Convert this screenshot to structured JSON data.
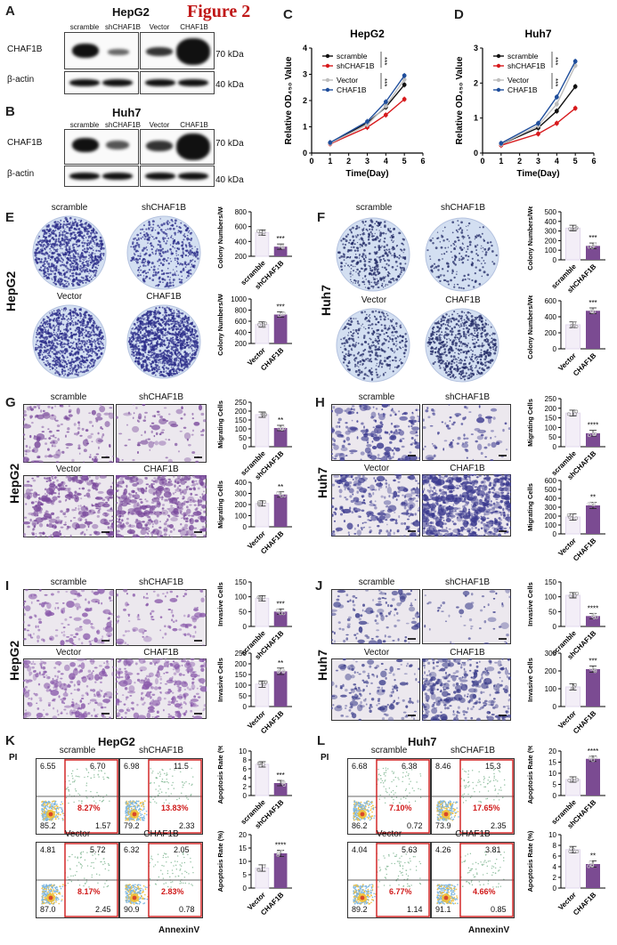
{
  "figure_title": "Figure 2",
  "panels": {
    "A": {
      "letter": "A",
      "cell_line": "HepG2",
      "lanes": [
        "scramble",
        "shCHAF1B",
        "Vector",
        "CHAF1B"
      ],
      "rows": [
        "CHAF1B",
        "β-actin"
      ],
      "markers": [
        "70 kDa",
        "40 kDa"
      ]
    },
    "B": {
      "letter": "B",
      "cell_line": "Huh7",
      "lanes": [
        "scramble",
        "shCHAF1B",
        "Vector",
        "CHAF1B"
      ],
      "rows": [
        "CHAF1B",
        "β-actin"
      ],
      "markers": [
        "70 kDa",
        "40 kDa"
      ]
    },
    "C": {
      "letter": "C"
    },
    "D": {
      "letter": "D"
    },
    "E": {
      "letter": "E",
      "cell_line": "HepG2",
      "conds": [
        "scramble",
        "shCHAF1B",
        "Vector",
        "CHAF1B"
      ]
    },
    "F": {
      "letter": "F",
      "cell_line": "Huh7",
      "conds": [
        "scramble",
        "shCHAF1B",
        "Vector",
        "CHAF1B"
      ]
    },
    "G": {
      "letter": "G",
      "cell_line": "HepG2",
      "conds": [
        "scramble",
        "shCHAF1B",
        "Vector",
        "CHAF1B"
      ]
    },
    "H": {
      "letter": "H",
      "cell_line": "Huh7",
      "conds": [
        "scramble",
        "shCHAF1B",
        "Vector",
        "CHAF1B"
      ]
    },
    "I": {
      "letter": "I",
      "cell_line": "HepG2",
      "conds": [
        "scramble",
        "shCHAF1B",
        "Vector",
        "CHAF1B"
      ]
    },
    "J": {
      "letter": "J",
      "cell_line": "Huh7",
      "conds": [
        "scramble",
        "shCHAF1B",
        "Vector",
        "CHAF1B"
      ]
    },
    "K": {
      "letter": "K",
      "cell_line": "HepG2",
      "x_axis": "AnnexinV",
      "y_axis": "PI",
      "plots": [
        {
          "cond": "scramble",
          "ul": "6.55",
          "ur": "6.70",
          "ll": "85.2",
          "lr": "1.57",
          "red": "8.27%"
        },
        {
          "cond": "shCHAF1B",
          "ul": "6.98",
          "ur": "11.5",
          "ll": "79.2",
          "lr": "2.33",
          "red": "13.83%"
        },
        {
          "cond": "Vector",
          "ul": "4.81",
          "ur": "5.72",
          "ll": "87.0",
          "lr": "2.45",
          "red": "8.17%"
        },
        {
          "cond": "CHAF1B",
          "ul": "6.32",
          "ur": "2.05",
          "ll": "90.9",
          "lr": "0.78",
          "red": "2.83%"
        }
      ]
    },
    "L": {
      "letter": "L",
      "cell_line": "Huh7",
      "x_axis": "AnnexinV",
      "y_axis": "PI",
      "plots": [
        {
          "cond": "scramble",
          "ul": "6.68",
          "ur": "6.38",
          "ll": "86.2",
          "lr": "0.72",
          "red": "7.10%"
        },
        {
          "cond": "shCHAF1B",
          "ul": "8.46",
          "ur": "15.3",
          "ll": "73.9",
          "lr": "2.35",
          "red": "17.65%"
        },
        {
          "cond": "Vector",
          "ul": "4.04",
          "ur": "5.63",
          "ll": "89.2",
          "lr": "1.14",
          "red": "6.77%"
        },
        {
          "cond": "CHAF1B",
          "ul": "4.26",
          "ur": "3.81",
          "ll": "91.1",
          "lr": "0.85",
          "red": "4.66%"
        }
      ]
    }
  },
  "colors": {
    "scramble": "#111111",
    "shCHAF1B": "#d7191c",
    "Vector": "#bdbdbd",
    "CHAF1B": "#1f4e9c",
    "bar_ctrl": "#f3eef7",
    "bar_treat": "#7b4b92",
    "stain": "#5b3a8c"
  },
  "chart_data": [
    {
      "id": "C",
      "type": "line",
      "title": "HepG2",
      "xlabel": "Time(Day)",
      "ylabel": "Relative OD₄₅₀ Value",
      "x": [
        1,
        3,
        4,
        5
      ],
      "xlim": [
        0,
        6
      ],
      "ylim": [
        0,
        4
      ],
      "xticks": [
        0,
        1,
        2,
        3,
        4,
        5,
        6
      ],
      "yticks": [
        0,
        1,
        2,
        3,
        4
      ],
      "series": [
        {
          "name": "scramble",
          "values": [
            0.38,
            1.15,
            1.75,
            2.6
          ]
        },
        {
          "name": "shCHAF1B",
          "values": [
            0.35,
            0.98,
            1.45,
            2.05
          ]
        },
        {
          "name": "Vector",
          "values": [
            0.37,
            1.08,
            1.8,
            2.8
          ]
        },
        {
          "name": "CHAF1B",
          "values": [
            0.4,
            1.2,
            1.95,
            2.95
          ]
        }
      ],
      "annotations": [
        "***",
        "***"
      ]
    },
    {
      "id": "D",
      "type": "line",
      "title": "Huh7",
      "xlabel": "Time(Day)",
      "ylabel": "Relative OD₄₅₀ Value",
      "x": [
        1,
        3,
        4,
        5
      ],
      "xlim": [
        0,
        6
      ],
      "ylim": [
        0,
        3
      ],
      "xticks": [
        0,
        1,
        2,
        3,
        4,
        5,
        6
      ],
      "yticks": [
        0,
        1,
        2,
        3
      ],
      "series": [
        {
          "name": "scramble",
          "values": [
            0.25,
            0.72,
            1.2,
            1.9
          ]
        },
        {
          "name": "shCHAF1B",
          "values": [
            0.22,
            0.55,
            0.85,
            1.28
          ]
        },
        {
          "name": "Vector",
          "values": [
            0.25,
            0.78,
            1.4,
            2.5
          ]
        },
        {
          "name": "CHAF1B",
          "values": [
            0.28,
            0.85,
            1.6,
            2.62
          ]
        }
      ],
      "annotations": [
        "***",
        "***"
      ]
    },
    {
      "id": "E1",
      "type": "bar",
      "ylabel": "Colony Numbers/Well",
      "categories": [
        "scramble",
        "shCHAF1B"
      ],
      "values": [
        520,
        330
      ],
      "ylim": [
        200,
        800
      ],
      "yticks": [
        200,
        400,
        600,
        800
      ],
      "sig": "***"
    },
    {
      "id": "E2",
      "type": "bar",
      "ylabel": "Colony Numbers/Well",
      "categories": [
        "Vector",
        "CHAF1B"
      ],
      "values": [
        540,
        720
      ],
      "ylim": [
        200,
        1000
      ],
      "yticks": [
        200,
        400,
        600,
        800,
        1000
      ],
      "sig": "***"
    },
    {
      "id": "F1",
      "type": "bar",
      "ylabel": "Colony Numbers/Well",
      "categories": [
        "scramble",
        "shCHAF1B"
      ],
      "values": [
        330,
        145
      ],
      "ylim": [
        0,
        500
      ],
      "yticks": [
        0,
        100,
        200,
        300,
        400,
        500
      ],
      "sig": "***"
    },
    {
      "id": "F2",
      "type": "bar",
      "ylabel": "Colony Numbers/Well",
      "categories": [
        "Vector",
        "CHAF1B"
      ],
      "values": [
        300,
        475
      ],
      "ylim": [
        0,
        600
      ],
      "yticks": [
        0,
        200,
        400,
        600
      ],
      "sig": "***"
    },
    {
      "id": "G1",
      "type": "bar",
      "ylabel": "Migrating Cells",
      "categories": [
        "scramble",
        "shCHAF1B"
      ],
      "values": [
        180,
        105
      ],
      "ylim": [
        0,
        250
      ],
      "yticks": [
        0,
        50,
        100,
        150,
        200,
        250
      ],
      "sig": "**"
    },
    {
      "id": "G2",
      "type": "bar",
      "ylabel": "Migrating Cells",
      "categories": [
        "Vector",
        "CHAF1B"
      ],
      "values": [
        210,
        290
      ],
      "ylim": [
        0,
        400
      ],
      "yticks": [
        0,
        100,
        200,
        300,
        400
      ],
      "sig": "**"
    },
    {
      "id": "H1",
      "type": "bar",
      "ylabel": "Migrating Cells",
      "categories": [
        "scramble",
        "shCHAF1B"
      ],
      "values": [
        175,
        70
      ],
      "ylim": [
        0,
        250
      ],
      "yticks": [
        0,
        50,
        100,
        150,
        200,
        250
      ],
      "sig": "****"
    },
    {
      "id": "H2",
      "type": "bar",
      "ylabel": "Migrating Cells",
      "categories": [
        "Vector",
        "CHAF1B"
      ],
      "values": [
        190,
        320
      ],
      "ylim": [
        0,
        600
      ],
      "yticks": [
        0,
        100,
        200,
        300,
        400,
        500,
        600
      ],
      "sig": "**"
    },
    {
      "id": "I1",
      "type": "bar",
      "ylabel": "Invasive Cells",
      "categories": [
        "scramble",
        "shCHAF1B"
      ],
      "values": [
        95,
        50
      ],
      "ylim": [
        0,
        150
      ],
      "yticks": [
        0,
        50,
        100,
        150
      ],
      "sig": "***"
    },
    {
      "id": "I2",
      "type": "bar",
      "ylabel": "Invasive Cells",
      "categories": [
        "Vector",
        "CHAF1B"
      ],
      "values": [
        105,
        165
      ],
      "ylim": [
        0,
        250
      ],
      "yticks": [
        0,
        50,
        100,
        150,
        200,
        250
      ],
      "sig": "**"
    },
    {
      "id": "J1",
      "type": "bar",
      "ylabel": "Invasive Cells",
      "categories": [
        "scramble",
        "shCHAF1B"
      ],
      "values": [
        105,
        35
      ],
      "ylim": [
        0,
        150
      ],
      "yticks": [
        0,
        50,
        100,
        150
      ],
      "sig": "****"
    },
    {
      "id": "J2",
      "type": "bar",
      "ylabel": "Invasive Cells",
      "categories": [
        "Vector",
        "CHAF1B"
      ],
      "values": [
        110,
        210
      ],
      "ylim": [
        0,
        300
      ],
      "yticks": [
        0,
        100,
        200,
        300
      ],
      "sig": "***"
    },
    {
      "id": "K1",
      "type": "bar",
      "ylabel": "Apoptosis Rate (%)",
      "categories": [
        "scramble",
        "shCHAF1B"
      ],
      "values": [
        7.0,
        2.8
      ],
      "ylim": [
        0,
        10
      ],
      "yticks": [
        0,
        2,
        4,
        6,
        8,
        10
      ],
      "sig": "***"
    },
    {
      "id": "K2",
      "type": "bar",
      "ylabel": "Apoptosis Rate (%)",
      "categories": [
        "Vector",
        "CHAF1B"
      ],
      "values": [
        7.5,
        13.0
      ],
      "ylim": [
        0,
        20
      ],
      "yticks": [
        0,
        5,
        10,
        15,
        20
      ],
      "sig": "****"
    },
    {
      "id": "L1",
      "type": "bar",
      "ylabel": "Apoptosis Rate (%)",
      "categories": [
        "scramble",
        "shCHAF1B"
      ],
      "values": [
        7.2,
        16.5
      ],
      "ylim": [
        0,
        20
      ],
      "yticks": [
        0,
        5,
        10,
        15,
        20
      ],
      "sig": "****"
    },
    {
      "id": "L2",
      "type": "bar",
      "ylabel": "Apoptosis Rate (%)",
      "categories": [
        "Vector",
        "CHAF1B"
      ],
      "values": [
        7.2,
        4.5
      ],
      "ylim": [
        0,
        10
      ],
      "yticks": [
        0,
        2,
        4,
        6,
        8,
        10
      ],
      "sig": "**"
    }
  ]
}
